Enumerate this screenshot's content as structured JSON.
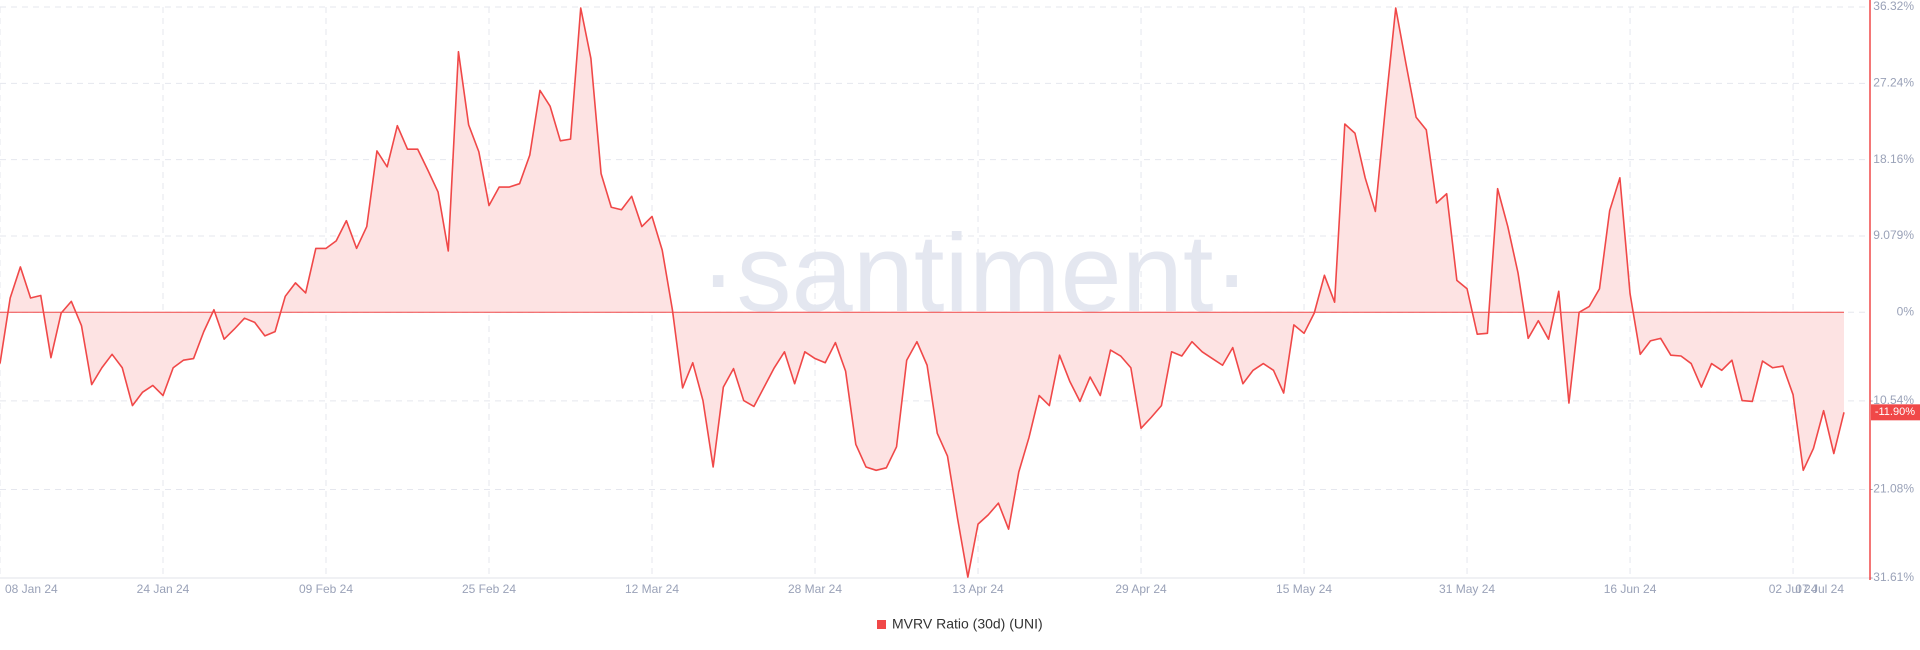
{
  "chart_data": {
    "type": "area",
    "watermark": "·santiment·",
    "x": [
      "2024-01-08",
      "2024-01-09",
      "2024-01-10",
      "2024-01-11",
      "2024-01-12",
      "2024-01-13",
      "2024-01-14",
      "2024-01-15",
      "2024-01-16",
      "2024-01-17",
      "2024-01-18",
      "2024-01-19",
      "2024-01-20",
      "2024-01-21",
      "2024-01-22",
      "2024-01-23",
      "2024-01-24",
      "2024-01-25",
      "2024-01-26",
      "2024-01-27",
      "2024-01-28",
      "2024-01-29",
      "2024-01-30",
      "2024-01-31",
      "2024-02-01",
      "2024-02-02",
      "2024-02-03",
      "2024-02-04",
      "2024-02-05",
      "2024-02-06",
      "2024-02-07",
      "2024-02-08",
      "2024-02-09",
      "2024-02-10",
      "2024-02-11",
      "2024-02-12",
      "2024-02-13",
      "2024-02-14",
      "2024-02-15",
      "2024-02-16",
      "2024-02-17",
      "2024-02-18",
      "2024-02-19",
      "2024-02-20",
      "2024-02-21",
      "2024-02-22",
      "2024-02-23",
      "2024-02-24",
      "2024-02-25",
      "2024-02-26",
      "2024-02-27",
      "2024-02-28",
      "2024-02-29",
      "2024-03-01",
      "2024-03-02",
      "2024-03-03",
      "2024-03-04",
      "2024-03-05",
      "2024-03-06",
      "2024-03-07",
      "2024-03-08",
      "2024-03-09",
      "2024-03-10",
      "2024-03-11",
      "2024-03-12",
      "2024-03-13",
      "2024-03-14",
      "2024-03-15",
      "2024-03-16",
      "2024-03-17",
      "2024-03-18",
      "2024-03-19",
      "2024-03-20",
      "2024-03-21",
      "2024-03-22",
      "2024-03-23",
      "2024-03-24",
      "2024-03-25",
      "2024-03-26",
      "2024-03-27",
      "2024-03-28",
      "2024-03-29",
      "2024-03-30",
      "2024-03-31",
      "2024-04-01",
      "2024-04-02",
      "2024-04-03",
      "2024-04-04",
      "2024-04-05",
      "2024-04-06",
      "2024-04-07",
      "2024-04-08",
      "2024-04-09",
      "2024-04-10",
      "2024-04-11",
      "2024-04-12",
      "2024-04-13",
      "2024-04-14",
      "2024-04-15",
      "2024-04-16",
      "2024-04-17",
      "2024-04-18",
      "2024-04-19",
      "2024-04-20",
      "2024-04-21",
      "2024-04-22",
      "2024-04-23",
      "2024-04-24",
      "2024-04-25",
      "2024-04-26",
      "2024-04-27",
      "2024-04-28",
      "2024-04-29",
      "2024-04-30",
      "2024-05-01",
      "2024-05-02",
      "2024-05-03",
      "2024-05-04",
      "2024-05-05",
      "2024-05-06",
      "2024-05-07",
      "2024-05-08",
      "2024-05-09",
      "2024-05-10",
      "2024-05-11",
      "2024-05-12",
      "2024-05-13",
      "2024-05-14",
      "2024-05-15",
      "2024-05-16",
      "2024-05-17",
      "2024-05-18",
      "2024-05-19",
      "2024-05-20",
      "2024-05-21",
      "2024-05-22",
      "2024-05-23",
      "2024-05-24",
      "2024-05-25",
      "2024-05-26",
      "2024-05-27",
      "2024-05-28",
      "2024-05-29",
      "2024-05-30",
      "2024-05-31",
      "2024-06-01",
      "2024-06-02",
      "2024-06-03",
      "2024-06-04",
      "2024-06-05",
      "2024-06-06",
      "2024-06-07",
      "2024-06-08",
      "2024-06-09",
      "2024-06-10",
      "2024-06-11",
      "2024-06-12",
      "2024-06-13",
      "2024-06-14",
      "2024-06-15",
      "2024-06-16",
      "2024-06-17",
      "2024-06-18",
      "2024-06-19",
      "2024-06-20",
      "2024-06-21",
      "2024-06-22",
      "2024-06-23",
      "2024-06-24",
      "2024-06-25",
      "2024-06-26",
      "2024-06-27",
      "2024-06-28",
      "2024-06-29",
      "2024-06-30",
      "2024-07-01",
      "2024-07-02",
      "2024-07-03",
      "2024-07-04",
      "2024-07-05",
      "2024-07-06",
      "2024-07-07"
    ],
    "series": [
      {
        "name": "MVRV Ratio (30d) (UNI)",
        "color": "#f04848",
        "area_color": "#fde3e3",
        "values": [
          -6.1,
          1.7,
          5.4,
          1.7,
          2.0,
          -5.4,
          -0.1,
          1.3,
          -1.6,
          -8.6,
          -6.6,
          -5.0,
          -6.6,
          -11.1,
          -9.5,
          -8.7,
          -9.9,
          -6.6,
          -5.7,
          -5.5,
          -2.3,
          0.3,
          -3.2,
          -2.0,
          -0.7,
          -1.2,
          -2.8,
          -2.3,
          1.9,
          3.5,
          2.3,
          7.6,
          7.6,
          8.5,
          10.9,
          7.6,
          10.2,
          19.2,
          17.3,
          22.2,
          19.4,
          19.4,
          16.9,
          14.3,
          7.3,
          31.0,
          22.3,
          19.1,
          12.7,
          14.9,
          14.9,
          15.3,
          18.7,
          26.4,
          24.5,
          20.4,
          20.6,
          36.2,
          30.2,
          16.5,
          12.5,
          12.2,
          13.8,
          10.2,
          11.4,
          7.4,
          0.3,
          -9.0,
          -6.0,
          -10.5,
          -18.4,
          -8.9,
          -6.7,
          -10.5,
          -11.2,
          -8.9,
          -6.6,
          -4.7,
          -8.5,
          -4.7,
          -5.5,
          -6.0,
          -3.6,
          -7.0,
          -15.7,
          -18.4,
          -18.8,
          -18.5,
          -16.0,
          -5.7,
          -3.5,
          -6.3,
          -14.4,
          -17.1,
          -24.6,
          -31.5,
          -25.2,
          -24.1,
          -22.7,
          -25.8,
          -19.0,
          -14.9,
          -9.9,
          -11.1,
          -5.1,
          -8.2,
          -10.6,
          -7.7,
          -9.9,
          -4.5,
          -5.2,
          -6.6,
          -13.8,
          -12.5,
          -11.1,
          -4.7,
          -5.2,
          -3.5,
          -4.7,
          -5.5,
          -6.3,
          -4.2,
          -8.5,
          -6.9,
          -6.1,
          -6.9,
          -9.6,
          -1.5,
          -2.5,
          -0.1,
          4.4,
          1.2,
          22.4,
          21.3,
          16.0,
          12.0,
          24.5,
          36.2,
          29.6,
          23.2,
          21.7,
          13.0,
          14.1,
          3.8,
          2.8,
          -2.6,
          -2.5,
          14.7,
          10.2,
          4.7,
          -3.1,
          -1.0,
          -3.2,
          2.5,
          -10.8,
          0,
          0.7,
          2.8,
          12.1,
          16.0,
          2.2,
          -5.0,
          -3.4,
          -3.1,
          -5.1,
          -5.2,
          -6.1,
          -8.9,
          -6.1,
          -6.9,
          -5.7,
          -10.5,
          -10.6,
          -5.8,
          -6.6,
          -6.4,
          -9.8,
          -18.8,
          -16.2,
          -11.7,
          -16.8,
          -11.9
        ]
      }
    ],
    "ylim": [
      -31.61,
      36.32
    ],
    "yticks": [
      {
        "value": -31.61,
        "label": "-31.61%"
      },
      {
        "value": -21.08,
        "label": "-21.08%"
      },
      {
        "value": -10.54,
        "label": "-10.54%"
      },
      {
        "value": 0,
        "label": "0%"
      },
      {
        "value": 9.079,
        "label": "9.079%"
      },
      {
        "value": 18.16,
        "label": "18.16%"
      },
      {
        "value": 27.24,
        "label": "27.24%"
      },
      {
        "value": 36.32,
        "label": "36.32%"
      }
    ],
    "xticks": [
      {
        "value": "2024-01-08",
        "label": "08 Jan 24"
      },
      {
        "value": "2024-01-24",
        "label": "24 Jan 24"
      },
      {
        "value": "2024-02-09",
        "label": "09 Feb 24"
      },
      {
        "value": "2024-02-25",
        "label": "25 Feb 24"
      },
      {
        "value": "2024-03-12",
        "label": "12 Mar 24"
      },
      {
        "value": "2024-03-28",
        "label": "28 Mar 24"
      },
      {
        "value": "2024-04-13",
        "label": "13 Apr 24"
      },
      {
        "value": "2024-04-29",
        "label": "29 Apr 24"
      },
      {
        "value": "2024-05-15",
        "label": "15 May 24"
      },
      {
        "value": "2024-05-31",
        "label": "31 May 24"
      },
      {
        "value": "2024-06-16",
        "label": "16 Jun 24"
      },
      {
        "value": "2024-07-02",
        "label": "02 Jul 24"
      },
      {
        "value": "2024-07-07",
        "label": "07 Jul 24"
      }
    ],
    "last_value": {
      "value": -11.9,
      "label": "-11.90%"
    },
    "grid": true
  }
}
